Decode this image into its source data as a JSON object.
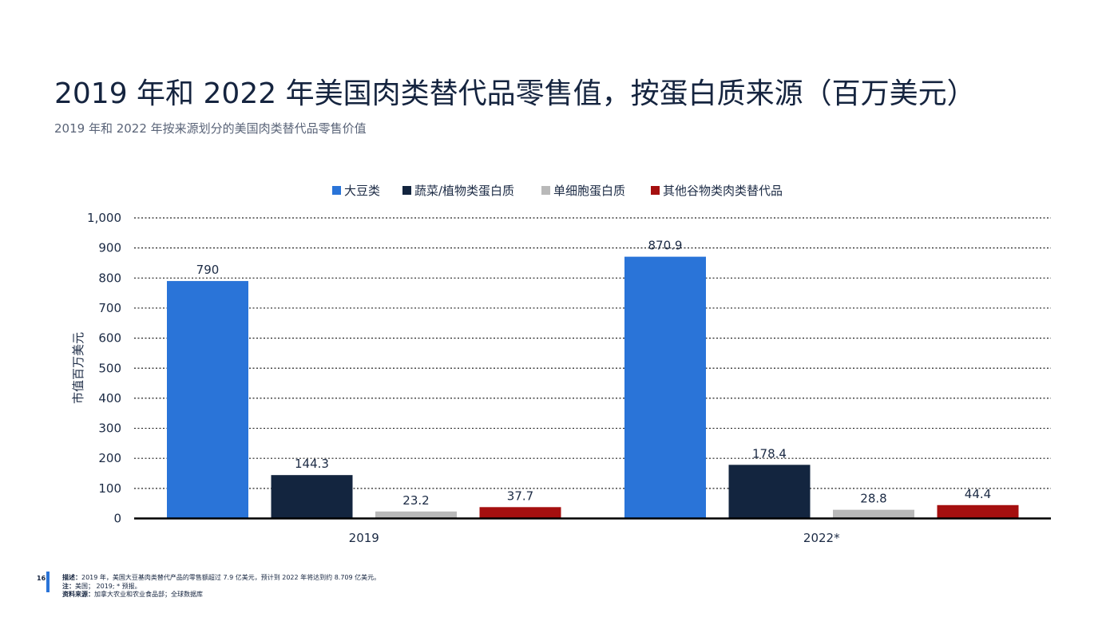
{
  "page": {
    "title": "2019 年和 2022 年美国肉类替代品零售值，按蛋白质来源（百万美元）",
    "subtitle": "2019 年和 2022 年按来源划分的美国肉类替代品零售价值",
    "page_number": "16"
  },
  "footer": {
    "description_label": "描述：",
    "description_text": "2019 年，美国大豆基肉类替代产品的零售额超过 7.9 亿美元，预计到 2022 年将达到约 8.709 亿美元。",
    "note_label": "注：",
    "note_text": "美国； 2019; * 预报。",
    "source_label": "资料来源：",
    "source_text": "加拿大农业和农业食品部；全球数据库"
  },
  "chart_data": {
    "type": "bar",
    "categories": [
      "2019",
      "2022*"
    ],
    "series": [
      {
        "name": "大豆类",
        "color": "#2a74d8",
        "values": [
          790,
          870.9
        ],
        "labels": [
          "790",
          "870.9"
        ]
      },
      {
        "name": "蔬菜/植物类蛋白质",
        "color": "#13253f",
        "values": [
          144.3,
          178.4
        ],
        "labels": [
          "144.3",
          "178.4"
        ]
      },
      {
        "name": "单细胞蛋白质",
        "color": "#b9b9b9",
        "values": [
          23.2,
          28.8
        ],
        "labels": [
          "23.2",
          "28.8"
        ]
      },
      {
        "name": "其他谷物类肉类替代品",
        "color": "#a50f0f",
        "values": [
          37.7,
          44.4
        ],
        "labels": [
          "37.7",
          "44.4"
        ]
      }
    ],
    "ylabel": "市值百万美元",
    "xlabel": "",
    "ylim": [
      0,
      1000
    ],
    "yticks": [
      "0",
      "100",
      "200",
      "300",
      "400",
      "500",
      "600",
      "700",
      "800",
      "900",
      "1,000"
    ],
    "grid": true,
    "legend_position": "top"
  }
}
